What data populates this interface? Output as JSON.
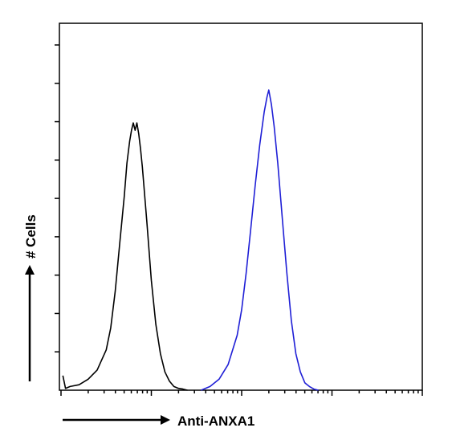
{
  "chart_data": {
    "type": "line",
    "title": "",
    "xlabel": "Anti-ANXA1",
    "ylabel": "# Cells",
    "x_scale": "log",
    "xlim": [
      0,
      4
    ],
    "ylim": [
      0,
      100
    ],
    "grid": false,
    "legend": "none",
    "series": [
      {
        "color": "#000000",
        "x": [
          0.02,
          0.05,
          0.1,
          0.2,
          0.3,
          0.4,
          0.5,
          0.55,
          0.6,
          0.65,
          0.7,
          0.73,
          0.76,
          0.78,
          0.8,
          0.82,
          0.84,
          0.86,
          0.88,
          0.9,
          0.95,
          1.0,
          1.05,
          1.1,
          1.15,
          1.2,
          1.25,
          1.3,
          1.35,
          1.4
        ],
        "y": [
          4,
          0.5,
          1,
          1.5,
          3,
          5.5,
          11,
          17,
          27,
          40,
          53,
          62,
          68,
          71,
          73,
          71,
          73,
          70,
          66,
          61,
          46,
          30,
          18,
          10,
          5,
          2.5,
          1,
          0.5,
          0.3,
          0
        ]
      },
      {
        "color": "#1f1fd6",
        "x": [
          1.55,
          1.65,
          1.75,
          1.85,
          1.95,
          2.0,
          2.05,
          2.1,
          2.15,
          2.2,
          2.25,
          2.28,
          2.3,
          2.33,
          2.36,
          2.4,
          2.45,
          2.5,
          2.55,
          2.6,
          2.65,
          2.7,
          2.75,
          2.8,
          2.85
        ],
        "y": [
          0,
          1,
          3,
          7,
          15,
          22,
          32,
          44,
          56,
          67,
          76,
          80,
          82,
          78,
          72,
          62,
          47,
          32,
          19,
          10,
          5,
          2,
          1,
          0.3,
          0
        ]
      }
    ]
  }
}
